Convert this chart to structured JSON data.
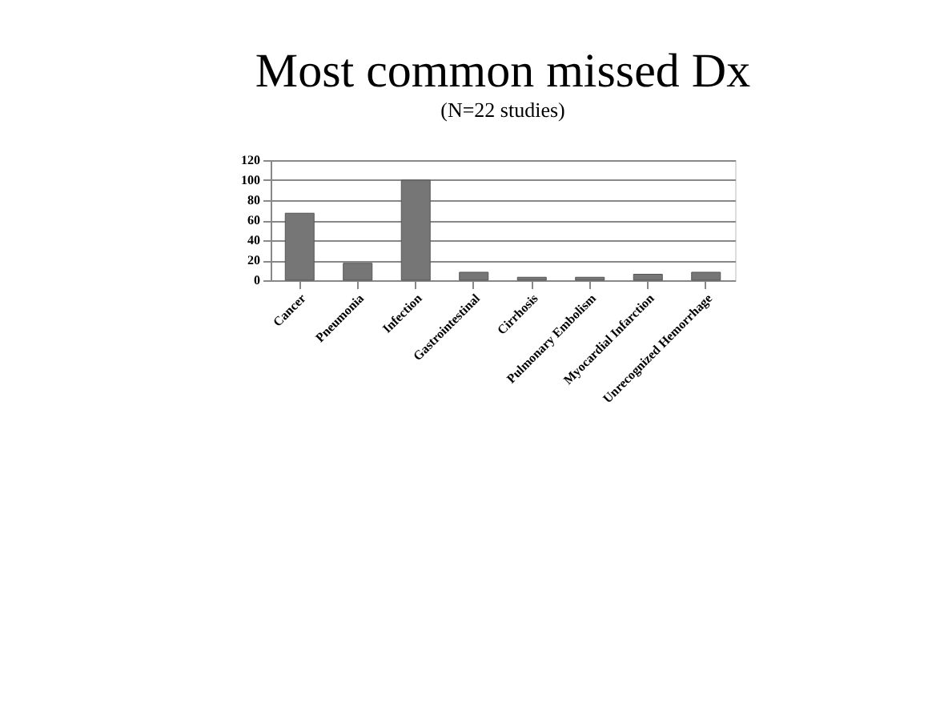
{
  "chart_data": {
    "type": "bar",
    "title": "Most common missed Dx",
    "subtitle": "(N=22 studies)",
    "categories": [
      "Cancer",
      "Pneumonia",
      "Infection",
      "Gastrointestinal",
      "Cirrhosis",
      "Pulmonary Embolism",
      "Myocardial Infarction",
      "Unrecognized Hemorrhage"
    ],
    "values": [
      67,
      17,
      100,
      8,
      3,
      3,
      6,
      8
    ],
    "color": "#767676",
    "ylim": [
      0,
      120
    ],
    "yticks": [
      0,
      20,
      40,
      60,
      80,
      100,
      120
    ],
    "grid": "y"
  }
}
